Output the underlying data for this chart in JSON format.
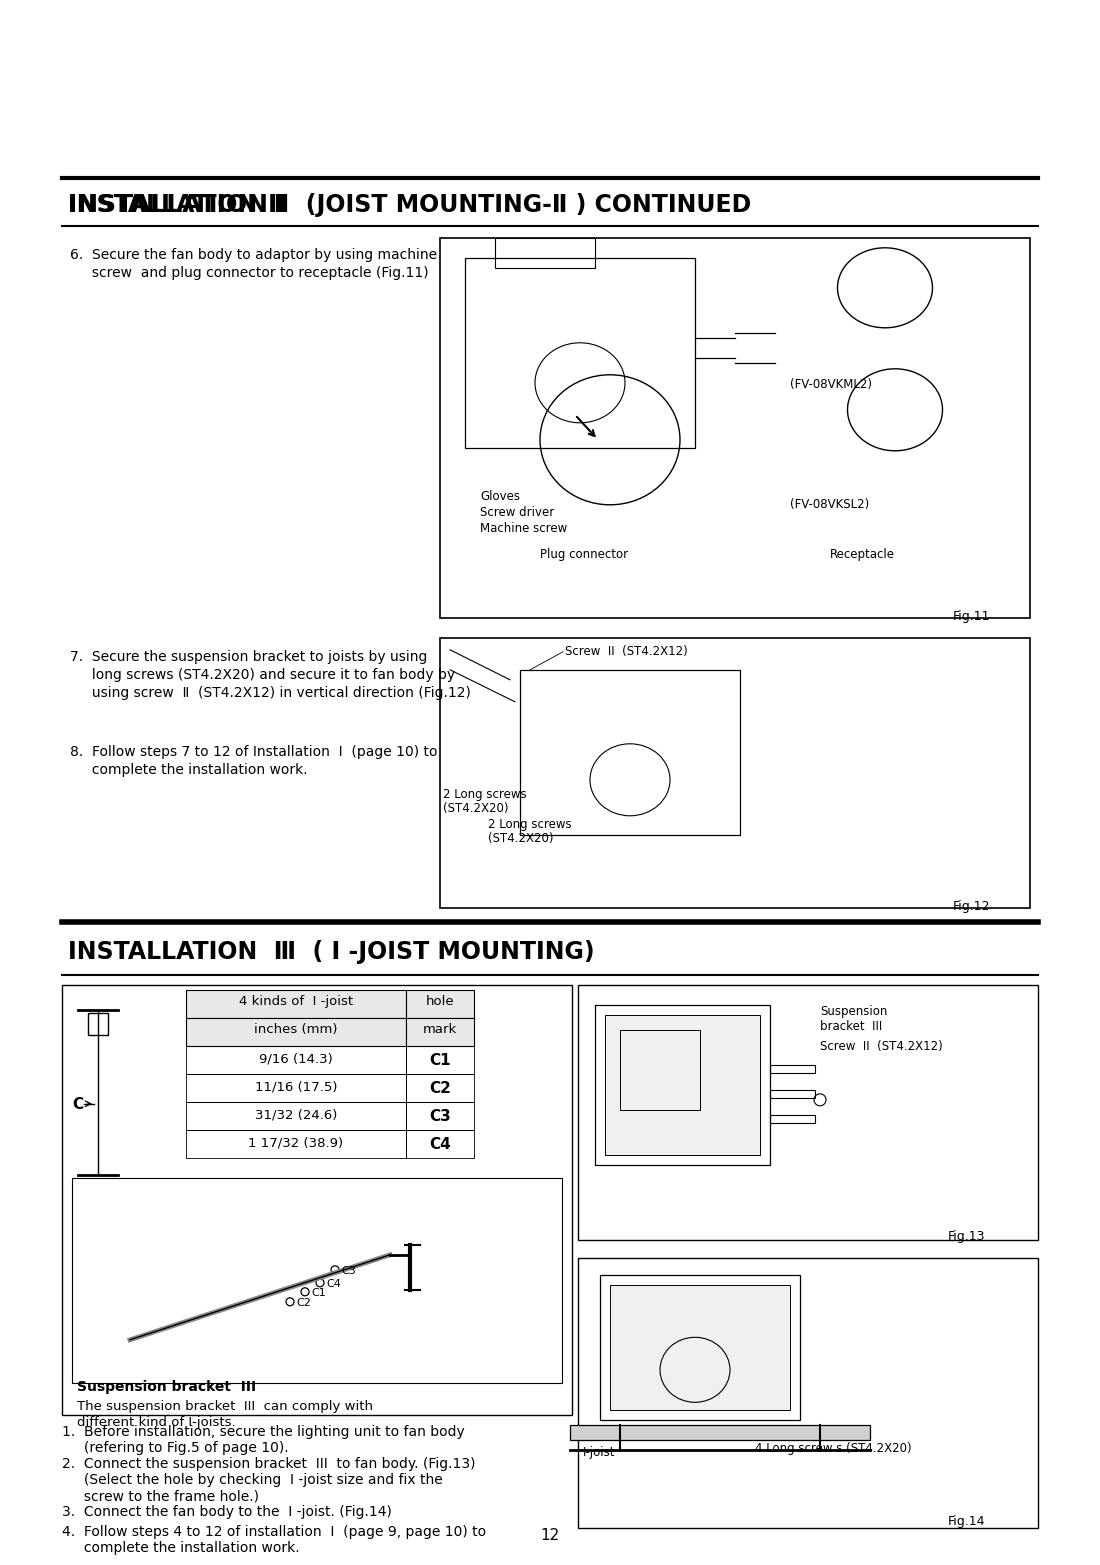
{
  "bg_color": "#ffffff",
  "text_color": "#000000",
  "page_width": 10.8,
  "page_height": 15.28,
  "section1_title": "INSTALLATION  II  (JOIST MOUNTING-II ) CONTINUED",
  "section2_title": "INSTALLATION  III  ( I -JOIST MOUNTING)",
  "step6_text": "6.  Secure the fan body to adaptor by using machine\n     screw and plug connector to receptacle (Fig.11)",
  "step7_text": "7.  Secure the suspension bracket to joists by using\n     long screws (ST4.2X20) and secure it to fan body by\n     using screw  II  (ST4.2X12) in vertical direction (Fig.12)",
  "step8_text": "8.  Follow steps 7 to 12 of Installation  I  (page 10) to\n     complete the installation work.",
  "fig11_label": "Fig.11",
  "fig12_label": "Fig.12",
  "fig13_label": "Fig.13",
  "fig14_label": "Fig.14",
  "fig11_annot_fvkml2": "(FV-08VKML2)",
  "fig11_annot_fvksl2": "(FV-08VKSL2)",
  "fig11_annot_gloves": "Gloves",
  "fig11_annot_screw_driver": "Screw driver",
  "fig11_annot_machine_screw": "Machine screw",
  "fig11_annot_plug": "Plug connector",
  "fig11_annot_receptacle": "Receptacle",
  "fig12_annot_screw": "Screw  II  (ST4.2X12)",
  "fig12_annot_long1": "2 Long screws",
  "fig12_annot_long1b": "(ST4.2X20)",
  "fig12_annot_long2": "2 Long screws",
  "fig12_annot_long2b": "(ST4.2X20)",
  "fig13_annot_bracket": "Suspension\nbracket  III",
  "fig13_annot_screw": "Screw  II  (ST4.2X12)",
  "fig14_annot_ijoist": "I-joist",
  "fig14_annot_screws": "4 Long screw s (ST4.2X20)",
  "table_col1_header1": "4 kinds of  I -joist",
  "table_col1_header2": "inches (mm)",
  "table_col2_header": "hole\nmark",
  "table_rows": [
    [
      "9/16 (14.3)",
      "C1"
    ],
    [
      "11/16 (17.5)",
      "C2"
    ],
    [
      "31/32 (24.6)",
      "C3"
    ],
    [
      "1 17/32 (38.9)",
      "C4"
    ]
  ],
  "susp_label": "Suspension bracket  III",
  "susp_note1": "The suspension bracket  III  can comply with",
  "susp_note2": "different kind of I-joists.",
  "step_i3_1": "1.  Before installation, secure the lighting unit to fan body\n     (refering to Fig.5 of page 10).",
  "step_i3_2": "2.  Connect the suspension bracket  III  to fan body. (Fig.13)\n     (Select the hole by checking  I -joist size and fix the\n     screw to the frame hole.)",
  "step_i3_3": "3.  Connect the fan body to the  I -joist. (Fig.14)",
  "step_i3_4": "4.  Follow steps 4 to 12 of installation  I  (page 9, page 10) to\n     complete the installation work.",
  "page_num": "12"
}
